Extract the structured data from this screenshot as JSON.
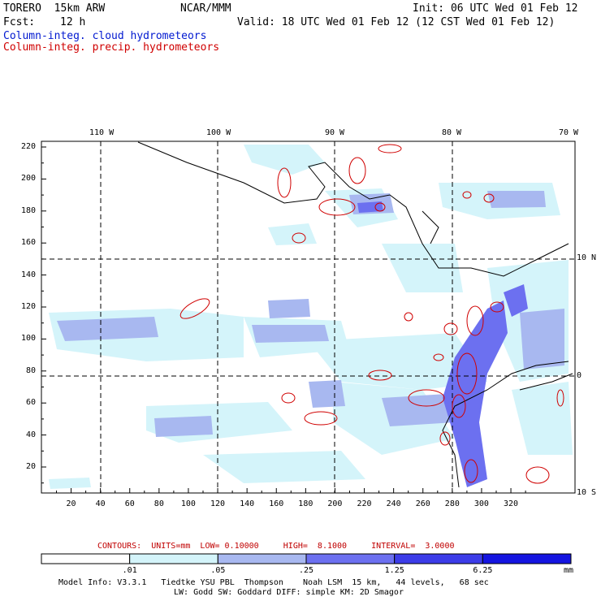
{
  "header": {
    "model": "TORERO  15km ARW",
    "center": "NCAR/MMM",
    "init": "Init: 06 UTC Wed 01 Feb 12",
    "fcst_label": "Fcst:",
    "fcst_value": "12 h",
    "valid": "Valid: 18 UTC Wed 01 Feb 12 (12 CST Wed 01 Feb 12)"
  },
  "legend_lines": {
    "cloud": "Column-integ. cloud hydrometeors",
    "precip": "Column-integ. precip. hydrometeors"
  },
  "axes": {
    "top_labels": [
      "110 W",
      "100 W",
      "90 W",
      "80 W",
      "70 W"
    ],
    "right_labels": [
      "10 N",
      "0",
      "10 S"
    ],
    "left_ticks": [
      "220",
      "200",
      "180",
      "160",
      "140",
      "120",
      "100",
      "80",
      "60",
      "40",
      "20"
    ],
    "bottom_ticks": [
      "20",
      "40",
      "60",
      "80",
      "100",
      "120",
      "140",
      "160",
      "180",
      "200",
      "220",
      "240",
      "260",
      "280",
      "300",
      "320"
    ]
  },
  "contours_info": "CONTOURS:  UNITS=mm  LOW= 0.10000     HIGH=  8.1000     INTERVAL=  3.0000",
  "colorbar": {
    "labels": [
      ".01",
      ".05",
      ".25",
      "1.25",
      "6.25"
    ],
    "unit": "mm",
    "colors": [
      "#ffffff",
      "#d4f4fa",
      "#a8b8f0",
      "#6c70f0",
      "#3c3ce8",
      "#1414e0"
    ]
  },
  "colors": {
    "cloud_light": "#d4f4fa",
    "cloud_mid": "#a8b8f0",
    "cloud_dark": "#6c70f0",
    "precip_contour": "#d00000"
  },
  "footer": {
    "line1": "Model Info: V3.3.1   Tiedtke YSU PBL  Thompson    Noah LSM  15 km,   44 levels,   68 sec",
    "line2": "LW: Godd SW: Goddard DIFF: simple KM: 2D Smagor"
  }
}
